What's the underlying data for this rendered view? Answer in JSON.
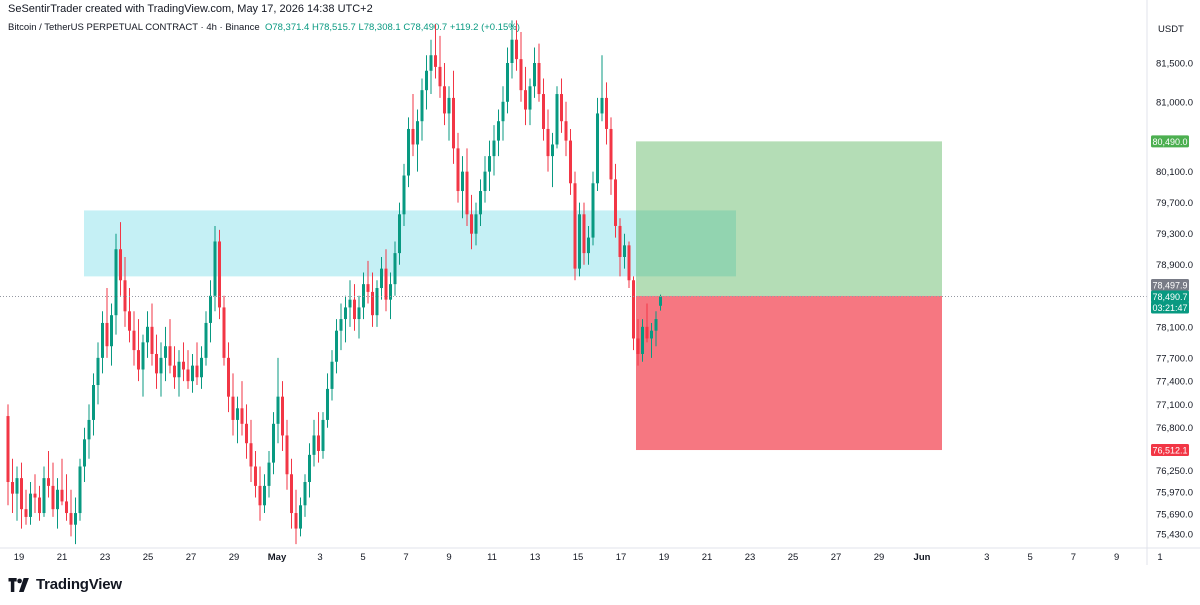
{
  "header": {
    "attribution": "SeSentirTrader created with TradingView.com, May 17, 2026 14:38 UTC+2"
  },
  "symbol": {
    "name": "Bitcoin / TetherUS PERPETUAL CONTRACT · 4h · Binance",
    "ohlc": "O78,371.4  H78,515.7  L78,308.1  C78,490.7  +119.2 (+0.15%)"
  },
  "axis": {
    "currency": "USDT",
    "price_ticks": [
      "81,500.0",
      "81,000.0",
      "80,100.0",
      "79,700.0",
      "79,300.0",
      "78,900.0",
      "78,100.0",
      "77,700.0",
      "77,400.0",
      "77,100.0",
      "76,800.0",
      "76,250.0",
      "75,970.0",
      "75,690.0",
      "75,430.0"
    ],
    "date_ticks": [
      "19",
      "21",
      "23",
      "25",
      "27",
      "29",
      "May",
      "3",
      "5",
      "7",
      "9",
      "11",
      "13",
      "15",
      "17",
      "19",
      "21",
      "23",
      "25",
      "27",
      "29",
      "Jun",
      "3",
      "5",
      "7",
      "9",
      "1"
    ]
  },
  "badges": {
    "target": "80,490.0",
    "last_price": "78,497.9",
    "close": "78,490.7",
    "countdown": "03:21:47",
    "stop": "76,512.1"
  },
  "colors": {
    "up": "#089981",
    "down": "#f23645",
    "zone": "#b2ebf2",
    "profit": "#4caf50",
    "loss": "#f23645"
  },
  "brand": {
    "name": "TradingView"
  },
  "chart_data": {
    "type": "candlestick",
    "interval": "4h",
    "ylim": [
      75250,
      82050
    ],
    "annotations": [
      {
        "kind": "zone",
        "low": 78750,
        "high": 79600,
        "from": "Apr 22",
        "to": "May 22"
      },
      {
        "kind": "long-position",
        "entry": 78497.9,
        "target": 80490.0,
        "stop": 76512.1,
        "from": "May 18",
        "to": "May 31"
      }
    ],
    "series": [
      {
        "o": 76950,
        "h": 77100,
        "l": 75800,
        "c": 76100
      },
      {
        "o": 76100,
        "h": 76400,
        "l": 75700,
        "c": 75950
      },
      {
        "o": 75950,
        "h": 76300,
        "l": 75600,
        "c": 76150
      },
      {
        "o": 76150,
        "h": 76350,
        "l": 75500,
        "c": 75750
      },
      {
        "o": 75750,
        "h": 76000,
        "l": 75550,
        "c": 75650
      },
      {
        "o": 75650,
        "h": 76100,
        "l": 75550,
        "c": 75950
      },
      {
        "o": 75950,
        "h": 76200,
        "l": 75700,
        "c": 75900
      },
      {
        "o": 75900,
        "h": 76050,
        "l": 75600,
        "c": 75700
      },
      {
        "o": 75700,
        "h": 76300,
        "l": 75650,
        "c": 76150
      },
      {
        "o": 76150,
        "h": 76500,
        "l": 75900,
        "c": 76050
      },
      {
        "o": 76050,
        "h": 76350,
        "l": 75650,
        "c": 75750
      },
      {
        "o": 75750,
        "h": 76150,
        "l": 75500,
        "c": 76000
      },
      {
        "o": 76000,
        "h": 76400,
        "l": 75800,
        "c": 75850
      },
      {
        "o": 75850,
        "h": 76200,
        "l": 75600,
        "c": 75700
      },
      {
        "o": 75700,
        "h": 76000,
        "l": 75400,
        "c": 75550
      },
      {
        "o": 75550,
        "h": 75900,
        "l": 75300,
        "c": 75700
      },
      {
        "o": 75700,
        "h": 76400,
        "l": 75600,
        "c": 76300
      },
      {
        "o": 76300,
        "h": 76800,
        "l": 76100,
        "c": 76650
      },
      {
        "o": 76650,
        "h": 77100,
        "l": 76400,
        "c": 76900
      },
      {
        "o": 76900,
        "h": 77500,
        "l": 76700,
        "c": 77350
      },
      {
        "o": 77350,
        "h": 77900,
        "l": 77100,
        "c": 77700
      },
      {
        "o": 77700,
        "h": 78300,
        "l": 77500,
        "c": 78150
      },
      {
        "o": 78150,
        "h": 78600,
        "l": 77700,
        "c": 77850
      },
      {
        "o": 77850,
        "h": 78400,
        "l": 77600,
        "c": 78250
      },
      {
        "o": 78250,
        "h": 79300,
        "l": 78000,
        "c": 79100
      },
      {
        "o": 79100,
        "h": 79450,
        "l": 78500,
        "c": 78700
      },
      {
        "o": 78700,
        "h": 79000,
        "l": 78100,
        "c": 78300
      },
      {
        "o": 78300,
        "h": 78600,
        "l": 77900,
        "c": 78050
      },
      {
        "o": 78050,
        "h": 78300,
        "l": 77600,
        "c": 77800
      },
      {
        "o": 77800,
        "h": 78200,
        "l": 77400,
        "c": 77550
      },
      {
        "o": 77550,
        "h": 78000,
        "l": 77200,
        "c": 77900
      },
      {
        "o": 77900,
        "h": 78300,
        "l": 77700,
        "c": 78100
      },
      {
        "o": 78100,
        "h": 78400,
        "l": 77600,
        "c": 77750
      },
      {
        "o": 77750,
        "h": 78000,
        "l": 77300,
        "c": 77500
      },
      {
        "o": 77500,
        "h": 77900,
        "l": 77200,
        "c": 77700
      },
      {
        "o": 77700,
        "h": 78100,
        "l": 77400,
        "c": 77850
      },
      {
        "o": 77850,
        "h": 78200,
        "l": 77500,
        "c": 77600
      },
      {
        "o": 77600,
        "h": 77850,
        "l": 77300,
        "c": 77450
      },
      {
        "o": 77450,
        "h": 77800,
        "l": 77200,
        "c": 77650
      },
      {
        "o": 77650,
        "h": 77900,
        "l": 77400,
        "c": 77550
      },
      {
        "o": 77550,
        "h": 77800,
        "l": 77300,
        "c": 77400
      },
      {
        "o": 77400,
        "h": 77750,
        "l": 77250,
        "c": 77600
      },
      {
        "o": 77600,
        "h": 77900,
        "l": 77350,
        "c": 77450
      },
      {
        "o": 77450,
        "h": 77850,
        "l": 77300,
        "c": 77700
      },
      {
        "o": 77700,
        "h": 78300,
        "l": 77600,
        "c": 78150
      },
      {
        "o": 78150,
        "h": 78700,
        "l": 77900,
        "c": 78500
      },
      {
        "o": 78500,
        "h": 79400,
        "l": 78300,
        "c": 79200
      },
      {
        "o": 79200,
        "h": 79350,
        "l": 78200,
        "c": 78350
      },
      {
        "o": 78350,
        "h": 78500,
        "l": 77600,
        "c": 77700
      },
      {
        "o": 77700,
        "h": 77900,
        "l": 77000,
        "c": 77200
      },
      {
        "o": 77200,
        "h": 77500,
        "l": 76700,
        "c": 76900
      },
      {
        "o": 76900,
        "h": 77200,
        "l": 76600,
        "c": 77050
      },
      {
        "o": 77050,
        "h": 77400,
        "l": 76700,
        "c": 76850
      },
      {
        "o": 76850,
        "h": 77100,
        "l": 76400,
        "c": 76600
      },
      {
        "o": 76600,
        "h": 76900,
        "l": 76100,
        "c": 76300
      },
      {
        "o": 76300,
        "h": 76500,
        "l": 75900,
        "c": 76050
      },
      {
        "o": 76050,
        "h": 76300,
        "l": 75600,
        "c": 75800
      },
      {
        "o": 75800,
        "h": 76200,
        "l": 75700,
        "c": 76050
      },
      {
        "o": 76050,
        "h": 76500,
        "l": 75900,
        "c": 76350
      },
      {
        "o": 76350,
        "h": 77000,
        "l": 76200,
        "c": 76850
      },
      {
        "o": 76850,
        "h": 77700,
        "l": 76600,
        "c": 77200
      },
      {
        "o": 77200,
        "h": 77400,
        "l": 76500,
        "c": 76700
      },
      {
        "o": 76700,
        "h": 76900,
        "l": 76000,
        "c": 76200
      },
      {
        "o": 76200,
        "h": 76400,
        "l": 75500,
        "c": 75700
      },
      {
        "o": 75700,
        "h": 76000,
        "l": 75300,
        "c": 75500
      },
      {
        "o": 75500,
        "h": 75900,
        "l": 75400,
        "c": 75800
      },
      {
        "o": 75800,
        "h": 76200,
        "l": 75650,
        "c": 76100
      },
      {
        "o": 76100,
        "h": 76600,
        "l": 75900,
        "c": 76450
      },
      {
        "o": 76450,
        "h": 76900,
        "l": 76300,
        "c": 76700
      },
      {
        "o": 76700,
        "h": 77000,
        "l": 76350,
        "c": 76500
      },
      {
        "o": 76500,
        "h": 77000,
        "l": 76400,
        "c": 76900
      },
      {
        "o": 76900,
        "h": 77500,
        "l": 76800,
        "c": 77300
      },
      {
        "o": 77300,
        "h": 77800,
        "l": 77150,
        "c": 77650
      },
      {
        "o": 77650,
        "h": 78200,
        "l": 77500,
        "c": 78050
      },
      {
        "o": 78050,
        "h": 78400,
        "l": 77800,
        "c": 78200
      },
      {
        "o": 78200,
        "h": 78500,
        "l": 77900,
        "c": 78350
      },
      {
        "o": 78350,
        "h": 78700,
        "l": 78100,
        "c": 78450
      },
      {
        "o": 78450,
        "h": 78650,
        "l": 78050,
        "c": 78200
      },
      {
        "o": 78200,
        "h": 78500,
        "l": 77950,
        "c": 78350
      },
      {
        "o": 78350,
        "h": 78800,
        "l": 78200,
        "c": 78650
      },
      {
        "o": 78650,
        "h": 78950,
        "l": 78400,
        "c": 78550
      },
      {
        "o": 78550,
        "h": 78800,
        "l": 78100,
        "c": 78250
      },
      {
        "o": 78250,
        "h": 78700,
        "l": 78100,
        "c": 78600
      },
      {
        "o": 78600,
        "h": 79000,
        "l": 78450,
        "c": 78850
      },
      {
        "o": 78850,
        "h": 79100,
        "l": 78300,
        "c": 78450
      },
      {
        "o": 78450,
        "h": 78800,
        "l": 78200,
        "c": 78650
      },
      {
        "o": 78650,
        "h": 79200,
        "l": 78500,
        "c": 79050
      },
      {
        "o": 79050,
        "h": 79700,
        "l": 78900,
        "c": 79550
      },
      {
        "o": 79550,
        "h": 80200,
        "l": 79400,
        "c": 80050
      },
      {
        "o": 80050,
        "h": 80800,
        "l": 79900,
        "c": 80650
      },
      {
        "o": 80650,
        "h": 81100,
        "l": 80300,
        "c": 80450
      },
      {
        "o": 80450,
        "h": 80900,
        "l": 80100,
        "c": 80750
      },
      {
        "o": 80750,
        "h": 81300,
        "l": 80500,
        "c": 81150
      },
      {
        "o": 81150,
        "h": 81600,
        "l": 80900,
        "c": 81400
      },
      {
        "o": 81400,
        "h": 81800,
        "l": 81100,
        "c": 81600
      },
      {
        "o": 81600,
        "h": 82000,
        "l": 81300,
        "c": 81450
      },
      {
        "o": 81450,
        "h": 81850,
        "l": 81050,
        "c": 81200
      },
      {
        "o": 81200,
        "h": 81500,
        "l": 80700,
        "c": 80850
      },
      {
        "o": 80850,
        "h": 81200,
        "l": 80500,
        "c": 81050
      },
      {
        "o": 81050,
        "h": 81400,
        "l": 80200,
        "c": 80400
      },
      {
        "o": 80400,
        "h": 80600,
        "l": 79700,
        "c": 79850
      },
      {
        "o": 79850,
        "h": 80300,
        "l": 79500,
        "c": 80100
      },
      {
        "o": 80100,
        "h": 80400,
        "l": 79400,
        "c": 79550
      },
      {
        "o": 79550,
        "h": 79800,
        "l": 79100,
        "c": 79300
      },
      {
        "o": 79300,
        "h": 79700,
        "l": 79150,
        "c": 79550
      },
      {
        "o": 79550,
        "h": 80000,
        "l": 79400,
        "c": 79850
      },
      {
        "o": 79850,
        "h": 80300,
        "l": 79700,
        "c": 80100
      },
      {
        "o": 80100,
        "h": 80500,
        "l": 79850,
        "c": 80300
      },
      {
        "o": 80300,
        "h": 80700,
        "l": 80050,
        "c": 80500
      },
      {
        "o": 80500,
        "h": 80900,
        "l": 80300,
        "c": 80750
      },
      {
        "o": 80750,
        "h": 81200,
        "l": 80500,
        "c": 81000
      },
      {
        "o": 81000,
        "h": 81700,
        "l": 80850,
        "c": 81500
      },
      {
        "o": 81500,
        "h": 82050,
        "l": 81300,
        "c": 81800
      },
      {
        "o": 81800,
        "h": 82050,
        "l": 81400,
        "c": 81550
      },
      {
        "o": 81550,
        "h": 81900,
        "l": 81000,
        "c": 81150
      },
      {
        "o": 81150,
        "h": 81450,
        "l": 80700,
        "c": 80900
      },
      {
        "o": 80900,
        "h": 81300,
        "l": 80700,
        "c": 81200
      },
      {
        "o": 81200,
        "h": 81700,
        "l": 81050,
        "c": 81500
      },
      {
        "o": 81500,
        "h": 81750,
        "l": 81000,
        "c": 81100
      },
      {
        "o": 81100,
        "h": 81300,
        "l": 80500,
        "c": 80650
      },
      {
        "o": 80650,
        "h": 80900,
        "l": 80100,
        "c": 80300
      },
      {
        "o": 80300,
        "h": 80600,
        "l": 79900,
        "c": 80450
      },
      {
        "o": 80450,
        "h": 81200,
        "l": 80400,
        "c": 81100
      },
      {
        "o": 81100,
        "h": 81300,
        "l": 80600,
        "c": 80750
      },
      {
        "o": 80750,
        "h": 81000,
        "l": 80300,
        "c": 80500
      },
      {
        "o": 80500,
        "h": 80650,
        "l": 79800,
        "c": 79950
      },
      {
        "o": 79950,
        "h": 80100,
        "l": 78700,
        "c": 78850
      },
      {
        "o": 78850,
        "h": 79700,
        "l": 78750,
        "c": 79550
      },
      {
        "o": 79550,
        "h": 79700,
        "l": 78900,
        "c": 79050
      },
      {
        "o": 79050,
        "h": 79400,
        "l": 78900,
        "c": 79250
      },
      {
        "o": 79250,
        "h": 80100,
        "l": 79150,
        "c": 79950
      },
      {
        "o": 79950,
        "h": 81050,
        "l": 79850,
        "c": 80850
      },
      {
        "o": 80850,
        "h": 81600,
        "l": 80750,
        "c": 81050
      },
      {
        "o": 81050,
        "h": 81250,
        "l": 80450,
        "c": 80650
      },
      {
        "o": 80650,
        "h": 80800,
        "l": 79800,
        "c": 80000
      },
      {
        "o": 80000,
        "h": 80200,
        "l": 79250,
        "c": 79400
      },
      {
        "o": 79400,
        "h": 79500,
        "l": 78750,
        "c": 79000
      },
      {
        "o": 79000,
        "h": 79300,
        "l": 78850,
        "c": 79150
      },
      {
        "o": 79150,
        "h": 79200,
        "l": 78600,
        "c": 78700
      },
      {
        "o": 78700,
        "h": 78750,
        "l": 77800,
        "c": 77950
      },
      {
        "o": 77950,
        "h": 78200,
        "l": 77600,
        "c": 77750
      },
      {
        "o": 77750,
        "h": 78200,
        "l": 77650,
        "c": 78100
      },
      {
        "o": 78100,
        "h": 78400,
        "l": 77900,
        "c": 77950
      },
      {
        "o": 77950,
        "h": 78150,
        "l": 77700,
        "c": 78050
      },
      {
        "o": 78050,
        "h": 78300,
        "l": 77850,
        "c": 78200
      },
      {
        "o": 78371.4,
        "h": 78515.7,
        "l": 78308.1,
        "c": 78490.7
      }
    ]
  }
}
